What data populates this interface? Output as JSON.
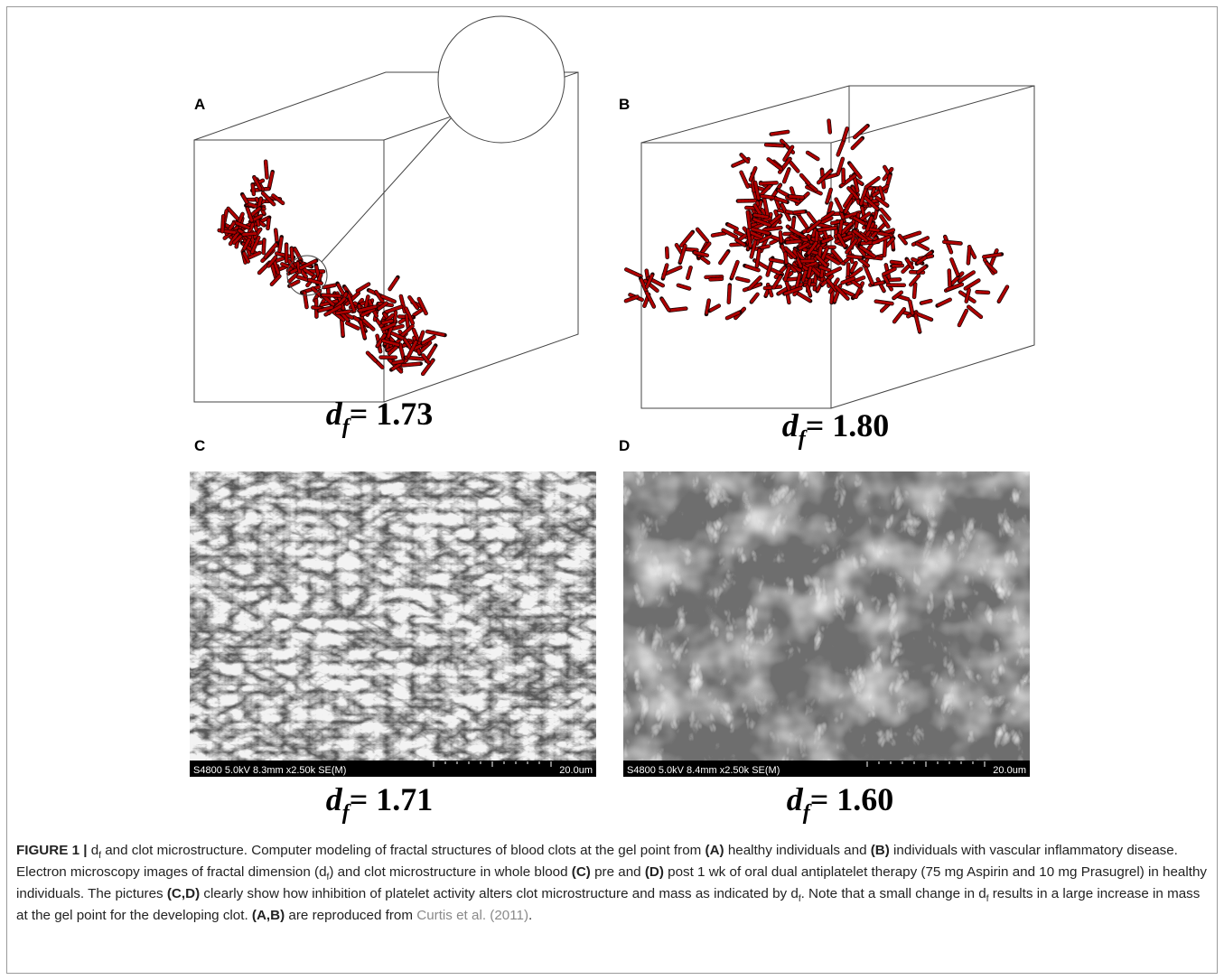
{
  "panels": [
    {
      "label": "A",
      "df": {
        "symbol": "d",
        "subscript": "f",
        "value": "= 1.73"
      }
    },
    {
      "label": "B",
      "df": {
        "symbol": "d",
        "subscript": "f",
        "value": "= 1.80"
      }
    },
    {
      "label": "C",
      "df": {
        "symbol": "d",
        "subscript": "f",
        "value": "= 1.71"
      },
      "scale_bar": {
        "info": "S4800 5.0kV 8.3mm x2.50k SE(M)",
        "scale": "20.0um"
      }
    },
    {
      "label": "D",
      "df": {
        "symbol": "d",
        "subscript": "f",
        "value": "= 1.60"
      },
      "scale_bar": {
        "info": "S4800 5.0kV 8.4mm x2.50k SE(M)",
        "scale": "20.0um"
      }
    }
  ],
  "caption": {
    "runs": [
      {
        "text": "FIGURE 1 |",
        "style": "bold"
      },
      {
        "text": " d",
        "style": "regular"
      },
      {
        "text": "f",
        "style": "subscript"
      },
      {
        "text": " and  clot microstructure. Computer modeling of fractal structures of blood clots at the gel point from ",
        "style": "regular"
      },
      {
        "text": "(A)",
        "style": "bold"
      },
      {
        "text": " healthy individuals and ",
        "style": "regular"
      },
      {
        "text": "(B)",
        "style": "bold"
      },
      {
        "text": " individuals with vascular inflammatory disease. Electron microscopy images of fractal dimension (d",
        "style": "regular"
      },
      {
        "text": "f",
        "style": "subscript"
      },
      {
        "text": ") and clot microstructure in whole blood ",
        "style": "regular"
      },
      {
        "text": "(C)",
        "style": "bold"
      },
      {
        "text": " pre and ",
        "style": "regular"
      },
      {
        "text": "(D)",
        "style": "bold"
      },
      {
        "text": " post 1 wk of oral dual antiplatelet therapy (75 mg Aspirin and 10 mg Prasugrel) in healthy individuals. The pictures ",
        "style": "regular"
      },
      {
        "text": "(C,D)",
        "style": "bold"
      },
      {
        "text": " clearly show how inhibition of platelet activity alters clot microstructure and mass as indicated by d",
        "style": "regular"
      },
      {
        "text": "f",
        "style": "subscript"
      },
      {
        "text": ". Note that a small change in d",
        "style": "regular"
      },
      {
        "text": "f",
        "style": "subscript"
      },
      {
        "text": " results in a large increase in mass at the gel point for the developing clot. ",
        "style": "regular"
      },
      {
        "text": "(A,B)",
        "style": "bold"
      },
      {
        "text": " are reproduced from ",
        "style": "regular"
      },
      {
        "text": "Curtis et al. (2011)",
        "style": "link"
      },
      {
        "text": ".",
        "style": "regular"
      }
    ]
  }
}
